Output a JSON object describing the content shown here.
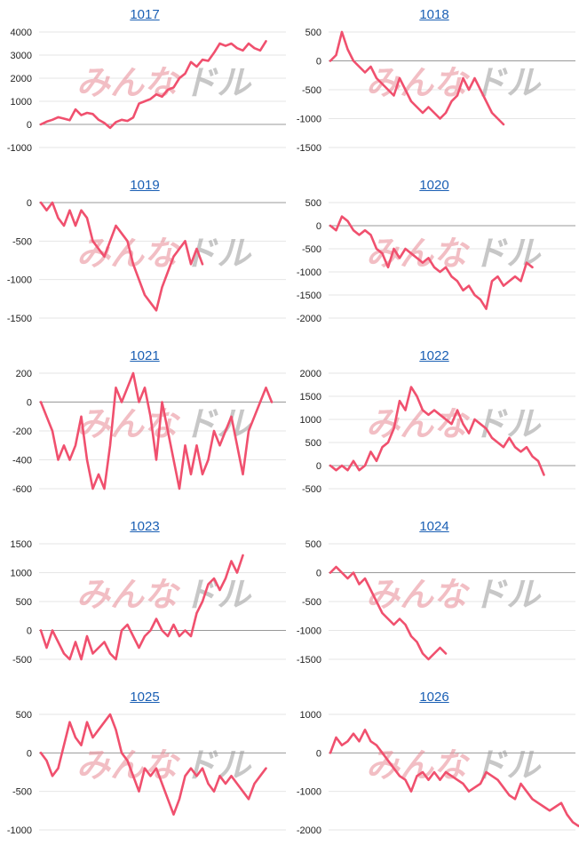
{
  "colors": {
    "line": "#f0506e",
    "watermark_left": "#e88a95",
    "watermark_right": "#9a9a9a",
    "title_link": "#1a5fb4"
  },
  "watermark": {
    "left": "みんな",
    "right": "ドル"
  },
  "chart_data": [
    {
      "type": "line",
      "title": "1017",
      "ylim": [
        -1000,
        4000
      ],
      "yticks": [
        4000,
        3000,
        2000,
        1000,
        0,
        -1000
      ],
      "values": [
        0,
        120,
        200,
        310,
        250,
        180,
        650,
        400,
        500,
        450,
        200,
        60,
        -150,
        100,
        200,
        150,
        300,
        900,
        1000,
        1100,
        1300,
        1200,
        1500,
        1600,
        2000,
        2200,
        2700,
        2500,
        2800,
        2750,
        3100,
        3500,
        3400,
        3500,
        3300,
        3200,
        3500,
        3300,
        3200,
        3600
      ]
    },
    {
      "type": "line",
      "title": "1018",
      "ylim": [
        -1500,
        500
      ],
      "yticks": [
        500,
        0,
        -500,
        -1000,
        -1500
      ],
      "values": [
        0,
        100,
        500,
        200,
        0,
        -100,
        -200,
        -100,
        -300,
        -400,
        -500,
        -600,
        -300,
        -500,
        -700,
        -800,
        -900,
        -800,
        -900,
        -1000,
        -900,
        -700,
        -600,
        -300,
        -500,
        -300,
        -500,
        -700,
        -900,
        -1000,
        -1100
      ]
    },
    {
      "type": "line",
      "title": "1019",
      "ylim": [
        -1500,
        0
      ],
      "yticks": [
        0,
        -500,
        -1000,
        -1500
      ],
      "values": [
        0,
        -100,
        0,
        -200,
        -300,
        -100,
        -300,
        -100,
        -200,
        -500,
        -600,
        -700,
        -500,
        -300,
        -400,
        -500,
        -800,
        -1000,
        -1200,
        -1300,
        -1400,
        -1100,
        -900,
        -700,
        -600,
        -500,
        -800,
        -600,
        -800
      ]
    },
    {
      "type": "line",
      "title": "1020",
      "ylim": [
        -2000,
        500
      ],
      "yticks": [
        500,
        0,
        -500,
        -1000,
        -1500,
        -2000
      ],
      "values": [
        0,
        -100,
        200,
        100,
        -100,
        -200,
        -100,
        -200,
        -500,
        -600,
        -900,
        -500,
        -700,
        -500,
        -600,
        -700,
        -800,
        -700,
        -900,
        -1000,
        -900,
        -1100,
        -1200,
        -1400,
        -1300,
        -1500,
        -1600,
        -1800,
        -1200,
        -1100,
        -1300,
        -1200,
        -1100,
        -1200,
        -800,
        -900
      ]
    },
    {
      "type": "line",
      "title": "1021",
      "ylim": [
        -600,
        200
      ],
      "yticks": [
        200,
        0,
        -200,
        -400,
        -600
      ],
      "values": [
        0,
        -100,
        -200,
        -400,
        -300,
        -400,
        -300,
        -100,
        -400,
        -600,
        -500,
        -600,
        -300,
        100,
        0,
        100,
        200,
        0,
        100,
        -100,
        -400,
        0,
        -200,
        -400,
        -600,
        -300,
        -500,
        -300,
        -500,
        -400,
        -200,
        -300,
        -200,
        -100,
        -300,
        -500,
        -200,
        -100,
        0,
        100,
        0
      ]
    },
    {
      "type": "line",
      "title": "1022",
      "ylim": [
        -500,
        2000
      ],
      "yticks": [
        2000,
        1500,
        1000,
        500,
        0,
        -500
      ],
      "values": [
        0,
        -100,
        0,
        -100,
        100,
        -100,
        0,
        300,
        100,
        400,
        500,
        800,
        1400,
        1200,
        1700,
        1500,
        1200,
        1100,
        1200,
        1100,
        1000,
        900,
        1200,
        900,
        700,
        1000,
        900,
        800,
        600,
        500,
        400,
        600,
        400,
        300,
        400,
        200,
        100,
        -200
      ]
    },
    {
      "type": "line",
      "title": "1023",
      "ylim": [
        -500,
        1500
      ],
      "yticks": [
        1500,
        1000,
        500,
        0,
        -500
      ],
      "values": [
        0,
        -300,
        0,
        -200,
        -400,
        -500,
        -200,
        -500,
        -100,
        -400,
        -300,
        -200,
        -400,
        -500,
        0,
        100,
        -100,
        -300,
        -100,
        0,
        200,
        0,
        -100,
        100,
        -100,
        0,
        -100,
        300,
        500,
        800,
        900,
        700,
        900,
        1200,
        1000,
        1300
      ]
    },
    {
      "type": "line",
      "title": "1024",
      "ylim": [
        -1500,
        500
      ],
      "yticks": [
        500,
        0,
        -500,
        -1000,
        -1500
      ],
      "values": [
        0,
        100,
        0,
        -100,
        0,
        -200,
        -100,
        -300,
        -500,
        -700,
        -800,
        -900,
        -800,
        -900,
        -1100,
        -1200,
        -1400,
        -1500,
        -1400,
        -1300,
        -1400
      ]
    },
    {
      "type": "line",
      "title": "1025",
      "ylim": [
        -1000,
        500
      ],
      "yticks": [
        500,
        0,
        -500,
        -1000
      ],
      "values": [
        0,
        -100,
        -300,
        -200,
        100,
        400,
        200,
        100,
        400,
        200,
        300,
        400,
        500,
        300,
        0,
        -100,
        -300,
        -500,
        -200,
        -300,
        -200,
        -400,
        -600,
        -800,
        -600,
        -300,
        -200,
        -300,
        -200,
        -400,
        -500,
        -300,
        -400,
        -300,
        -400,
        -500,
        -600,
        -400,
        -300,
        -200
      ]
    },
    {
      "type": "line",
      "title": "1026",
      "ylim": [
        -2000,
        1000
      ],
      "yticks": [
        1000,
        0,
        -1000,
        -2000
      ],
      "values": [
        0,
        400,
        200,
        300,
        500,
        300,
        600,
        300,
        200,
        0,
        -200,
        -400,
        -600,
        -700,
        -1000,
        -600,
        -500,
        -700,
        -500,
        -700,
        -500,
        -600,
        -700,
        -800,
        -1000,
        -900,
        -800,
        -500,
        -600,
        -700,
        -900,
        -1100,
        -1200,
        -800,
        -1000,
        -1200,
        -1300,
        -1400,
        -1500,
        -1400,
        -1300,
        -1600,
        -1800,
        -1900,
        -1800
      ]
    }
  ]
}
